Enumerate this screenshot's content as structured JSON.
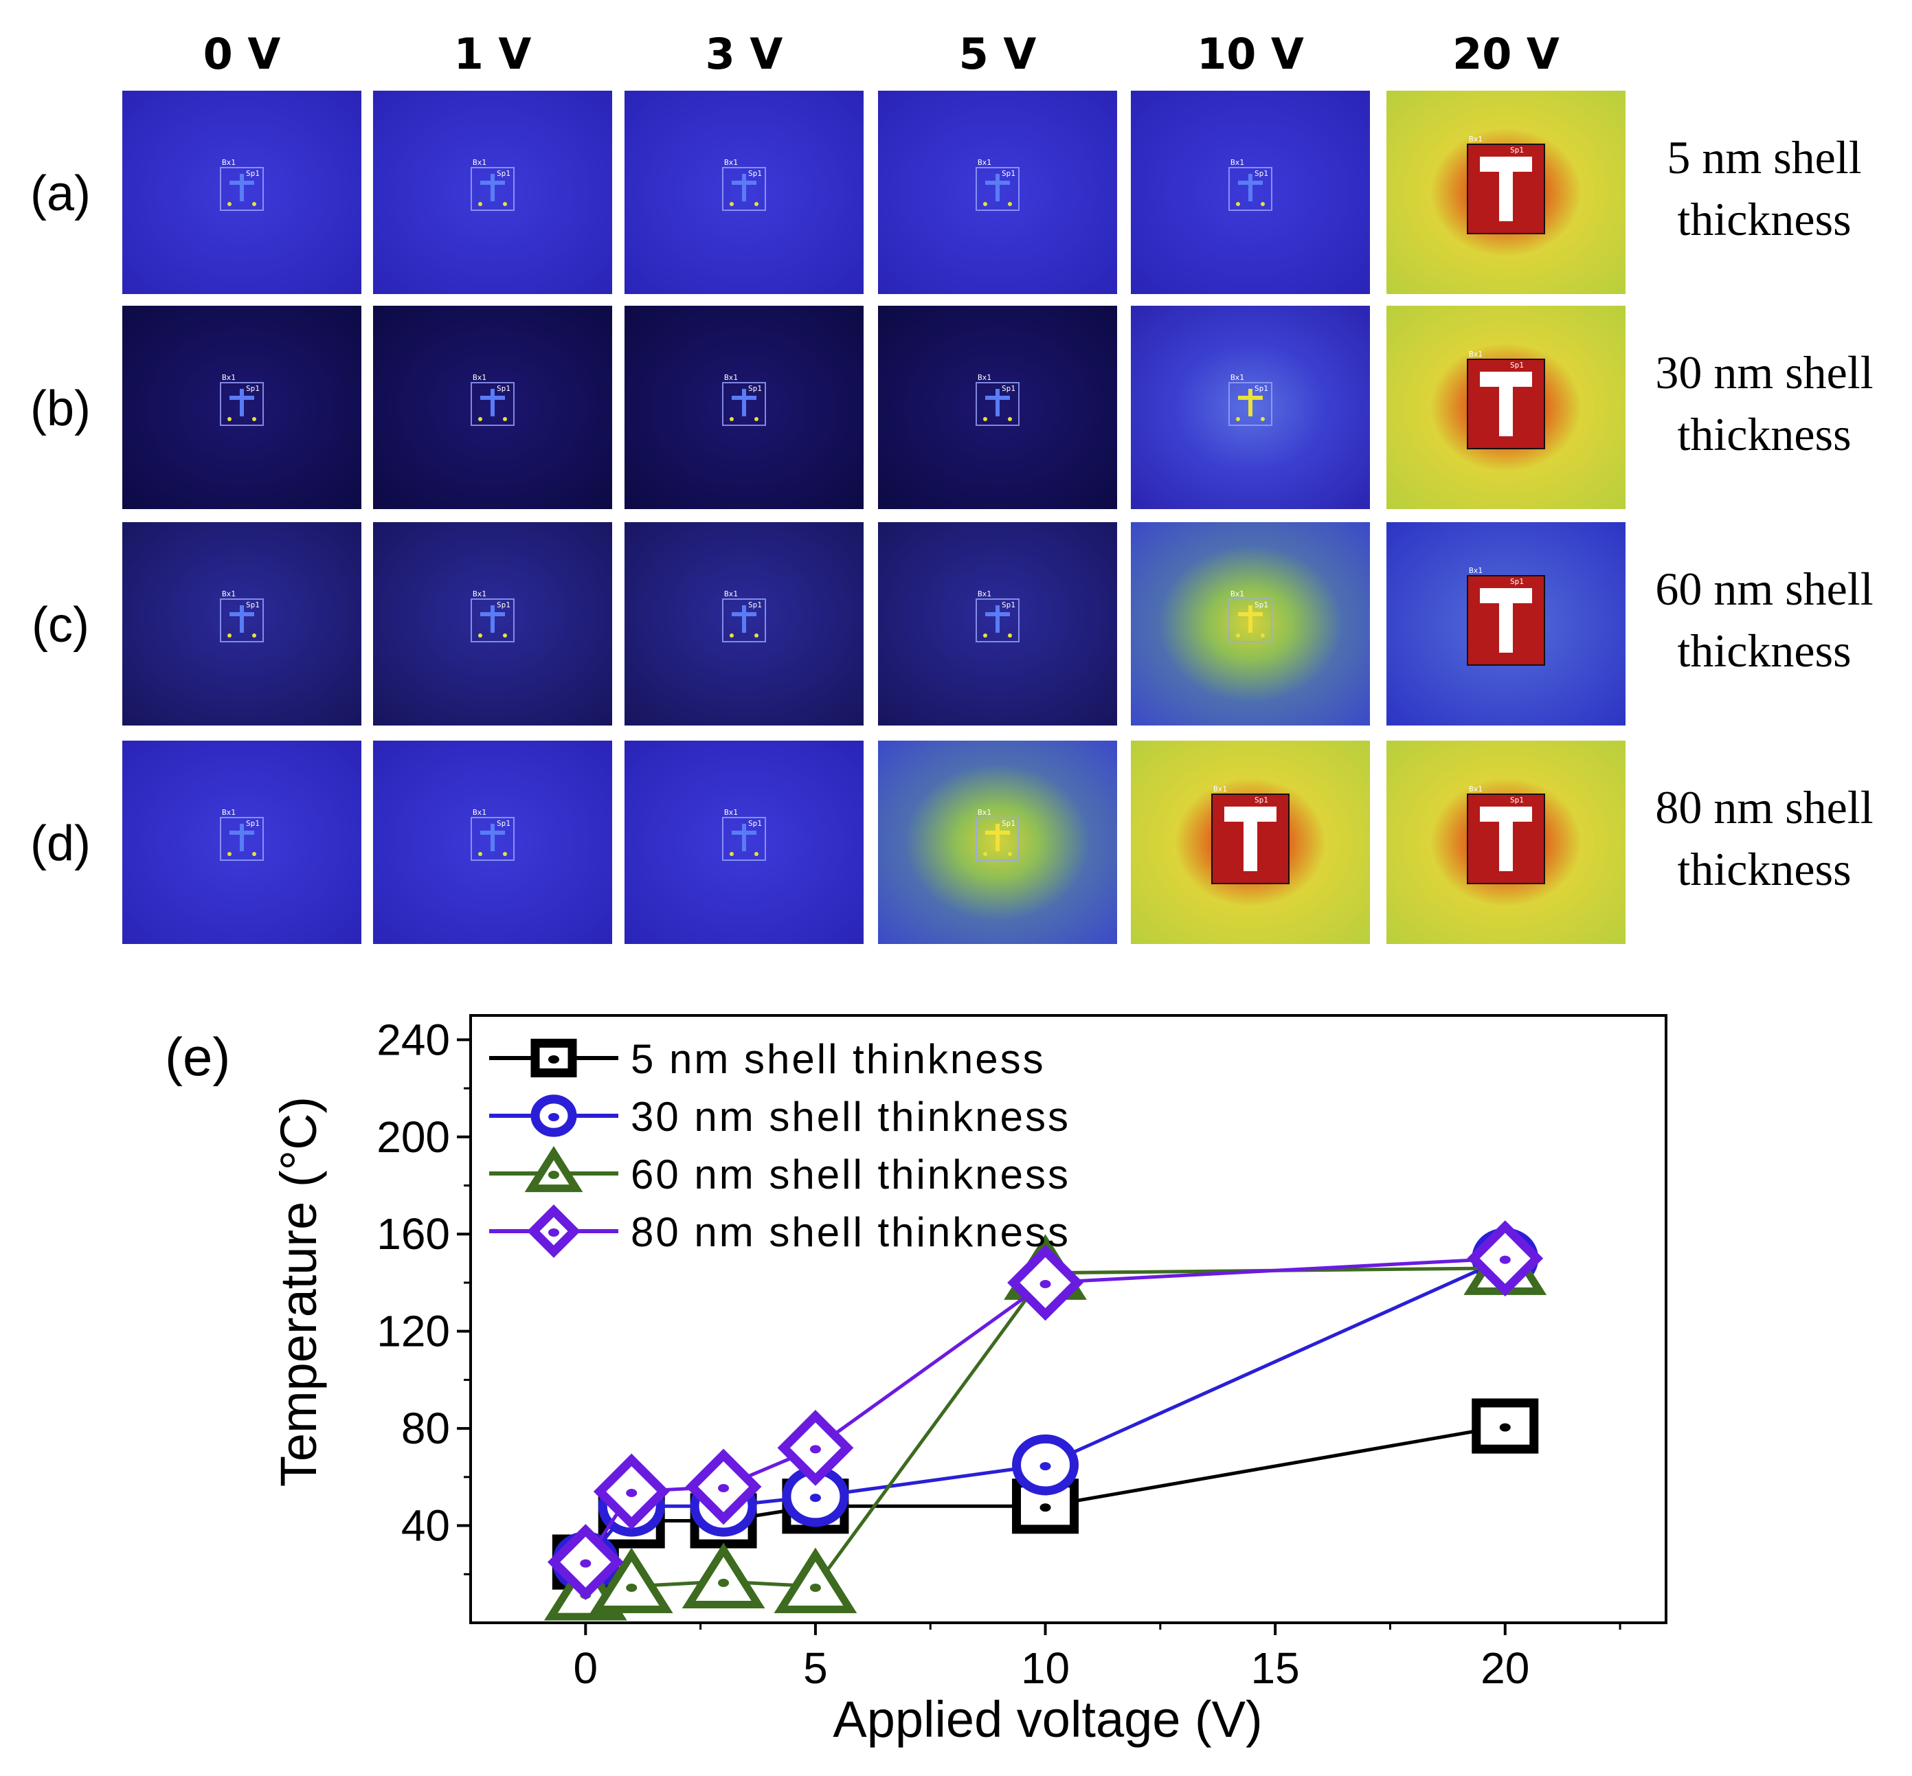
{
  "figure": {
    "voltage_headers": [
      "0 V",
      "1 V",
      "3 V",
      "5 V",
      "10 V",
      "20 V"
    ],
    "rows": [
      {
        "label": "(a)",
        "shell_line1": "5 nm shell",
        "shell_line2": "thickness",
        "cells": [
          "cold",
          "cold",
          "cold",
          "cold",
          "cold",
          "hot"
        ]
      },
      {
        "label": "(b)",
        "shell_line1": "30 nm shell",
        "shell_line2": "thickness",
        "cells": [
          "dark",
          "dark",
          "dark",
          "dark",
          "glow",
          "hot"
        ]
      },
      {
        "label": "(c)",
        "shell_line1": "60 nm shell",
        "shell_line2": "thickness",
        "cells": [
          "dim",
          "dim",
          "dim",
          "dim",
          "warm",
          "wide"
        ]
      },
      {
        "label": "(d)",
        "shell_line1": "80 nm shell",
        "shell_line2": "thickness",
        "cells": [
          "cold",
          "cold",
          "cold",
          "warm",
          "hot",
          "hot"
        ]
      }
    ],
    "tile_labels": {
      "box": "Bx1",
      "spot": "Sp1"
    },
    "panel_e_label": "(e)"
  },
  "colors": {
    "s5": "#000000",
    "s30": "#2a1fd6",
    "s60": "#3d6b1f",
    "s80": "#6a1be0"
  },
  "chart_data": {
    "type": "line",
    "xlabel": "Applied voltage (V)",
    "ylabel": "Temperature (°C)",
    "xlim": [
      -2.5,
      23.5
    ],
    "ylim": [
      0,
      250
    ],
    "xticks": [
      0,
      5,
      10,
      15,
      20
    ],
    "yticks": [
      40,
      80,
      120,
      160,
      200,
      240
    ],
    "legend_position": "top-left",
    "series": [
      {
        "name": "5 nm shell thinkness",
        "marker": "square",
        "color": "#000000",
        "x": [
          0,
          1,
          3,
          5,
          10,
          20
        ],
        "values": [
          25,
          42,
          42,
          48,
          48,
          81
        ]
      },
      {
        "name": "30 nm shell thinkness",
        "marker": "circle",
        "color": "#2a1fd6",
        "x": [
          0,
          1,
          3,
          5,
          10,
          20
        ],
        "values": [
          25,
          48,
          48,
          52,
          65,
          150
        ]
      },
      {
        "name": "60 nm shell thinkness",
        "marker": "triangle",
        "color": "#3d6b1f",
        "x": [
          0,
          1,
          3,
          5,
          10,
          20
        ],
        "values": [
          12,
          15,
          17,
          15,
          144,
          146
        ]
      },
      {
        "name": "80 nm shell thinkness",
        "marker": "diamond",
        "color": "#6a1be0",
        "x": [
          0,
          1,
          3,
          5,
          10,
          20
        ],
        "values": [
          25,
          54,
          56,
          72,
          140,
          150
        ]
      }
    ]
  }
}
